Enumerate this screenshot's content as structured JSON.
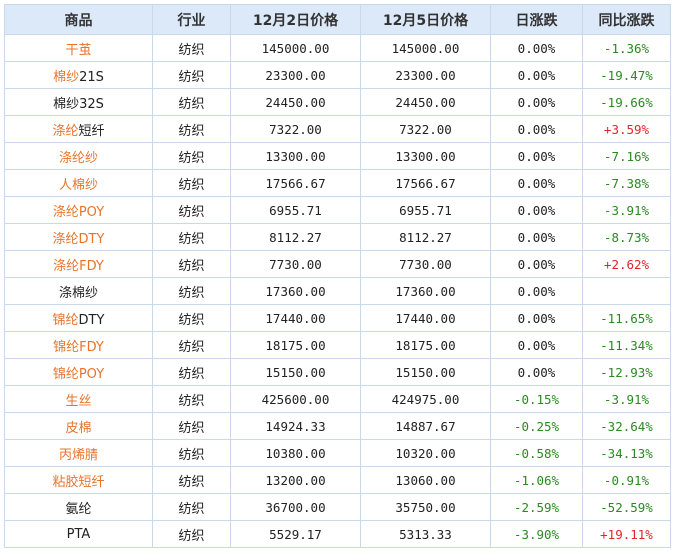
{
  "headers": [
    "商品",
    "行业",
    "12月2日价格",
    "12月5日价格",
    "日涨跌",
    "同比涨跌"
  ],
  "rows": [
    {
      "name": "干茧",
      "name_link": "干茧",
      "name_plain": "",
      "industry": "纺织",
      "p1": "145000.00",
      "p2": "145000.00",
      "day": "0.00%",
      "yoy": "-1.36%",
      "yoy_dir": "down",
      "day_dir": "flat"
    },
    {
      "name": "棉纱21S",
      "name_link": "棉纱",
      "name_plain": "21S",
      "industry": "纺织",
      "p1": "23300.00",
      "p2": "23300.00",
      "day": "0.00%",
      "yoy": "-19.47%",
      "yoy_dir": "down",
      "day_dir": "flat"
    },
    {
      "name": "棉纱32S",
      "name_link": "",
      "name_plain": "棉纱32S",
      "industry": "纺织",
      "p1": "24450.00",
      "p2": "24450.00",
      "day": "0.00%",
      "yoy": "-19.66%",
      "yoy_dir": "down",
      "day_dir": "flat"
    },
    {
      "name": "涤纶短纤",
      "name_link": "涤纶",
      "name_plain": "短纤",
      "industry": "纺织",
      "p1": "7322.00",
      "p2": "7322.00",
      "day": "0.00%",
      "yoy": "+3.59%",
      "yoy_dir": "up",
      "day_dir": "flat"
    },
    {
      "name": "涤纶纱",
      "name_link": "涤纶纱",
      "name_plain": "",
      "industry": "纺织",
      "p1": "13300.00",
      "p2": "13300.00",
      "day": "0.00%",
      "yoy": "-7.16%",
      "yoy_dir": "down",
      "day_dir": "flat"
    },
    {
      "name": "人棉纱",
      "name_link": "人棉纱",
      "name_plain": "",
      "industry": "纺织",
      "p1": "17566.67",
      "p2": "17566.67",
      "day": "0.00%",
      "yoy": "-7.38%",
      "yoy_dir": "down",
      "day_dir": "flat"
    },
    {
      "name": "涤纶POY",
      "name_link": "涤纶POY",
      "name_plain": "",
      "industry": "纺织",
      "p1": "6955.71",
      "p2": "6955.71",
      "day": "0.00%",
      "yoy": "-3.91%",
      "yoy_dir": "down",
      "day_dir": "flat"
    },
    {
      "name": "涤纶DTY",
      "name_link": "涤纶DTY",
      "name_plain": "",
      "industry": "纺织",
      "p1": "8112.27",
      "p2": "8112.27",
      "day": "0.00%",
      "yoy": "-8.73%",
      "yoy_dir": "down",
      "day_dir": "flat"
    },
    {
      "name": "涤纶FDY",
      "name_link": "涤纶FDY",
      "name_plain": "",
      "industry": "纺织",
      "p1": "7730.00",
      "p2": "7730.00",
      "day": "0.00%",
      "yoy": "+2.62%",
      "yoy_dir": "up",
      "day_dir": "flat"
    },
    {
      "name": "涤棉纱",
      "name_link": "",
      "name_plain": "涤棉纱",
      "industry": "纺织",
      "p1": "17360.00",
      "p2": "17360.00",
      "day": "0.00%",
      "yoy": "",
      "yoy_dir": "flat",
      "day_dir": "flat"
    },
    {
      "name": "锦纶DTY",
      "name_link": "锦纶",
      "name_plain": "DTY",
      "industry": "纺织",
      "p1": "17440.00",
      "p2": "17440.00",
      "day": "0.00%",
      "yoy": "-11.65%",
      "yoy_dir": "down",
      "day_dir": "flat"
    },
    {
      "name": "锦纶FDY",
      "name_link": "锦纶FDY",
      "name_plain": "",
      "industry": "纺织",
      "p1": "18175.00",
      "p2": "18175.00",
      "day": "0.00%",
      "yoy": "-11.34%",
      "yoy_dir": "down",
      "day_dir": "flat"
    },
    {
      "name": "锦纶POY",
      "name_link": "锦纶POY",
      "name_plain": "",
      "industry": "纺织",
      "p1": "15150.00",
      "p2": "15150.00",
      "day": "0.00%",
      "yoy": "-12.93%",
      "yoy_dir": "down",
      "day_dir": "flat"
    },
    {
      "name": "生丝",
      "name_link": "生丝",
      "name_plain": "",
      "industry": "纺织",
      "p1": "425600.00",
      "p2": "424975.00",
      "day": "-0.15%",
      "yoy": "-3.91%",
      "yoy_dir": "down",
      "day_dir": "down"
    },
    {
      "name": "皮棉",
      "name_link": "皮棉",
      "name_plain": "",
      "industry": "纺织",
      "p1": "14924.33",
      "p2": "14887.67",
      "day": "-0.25%",
      "yoy": "-32.64%",
      "yoy_dir": "down",
      "day_dir": "down"
    },
    {
      "name": "丙烯腈",
      "name_link": "丙烯腈",
      "name_plain": "",
      "industry": "纺织",
      "p1": "10380.00",
      "p2": "10320.00",
      "day": "-0.58%",
      "yoy": "-34.13%",
      "yoy_dir": "down",
      "day_dir": "down"
    },
    {
      "name": "粘胶短纤",
      "name_link": "粘胶短纤",
      "name_plain": "",
      "industry": "纺织",
      "p1": "13200.00",
      "p2": "13060.00",
      "day": "-1.06%",
      "yoy": "-0.91%",
      "yoy_dir": "down",
      "day_dir": "down"
    },
    {
      "name": "氨纶",
      "name_link": "",
      "name_plain": "氨纶",
      "industry": "纺织",
      "p1": "36700.00",
      "p2": "35750.00",
      "day": "-2.59%",
      "yoy": "-52.59%",
      "yoy_dir": "down",
      "day_dir": "down"
    },
    {
      "name": "PTA",
      "name_link": "",
      "name_plain": "PTA",
      "industry": "纺织",
      "p1": "5529.17",
      "p2": "5313.33",
      "day": "-3.90%",
      "yoy": "+19.11%",
      "yoy_dir": "up",
      "day_dir": "down"
    }
  ],
  "colors": {
    "header_bg": "#dce9f8",
    "border": "#c9d9ec",
    "link": "#e8742b",
    "up": "#e0252a",
    "down": "#2a8a21"
  }
}
